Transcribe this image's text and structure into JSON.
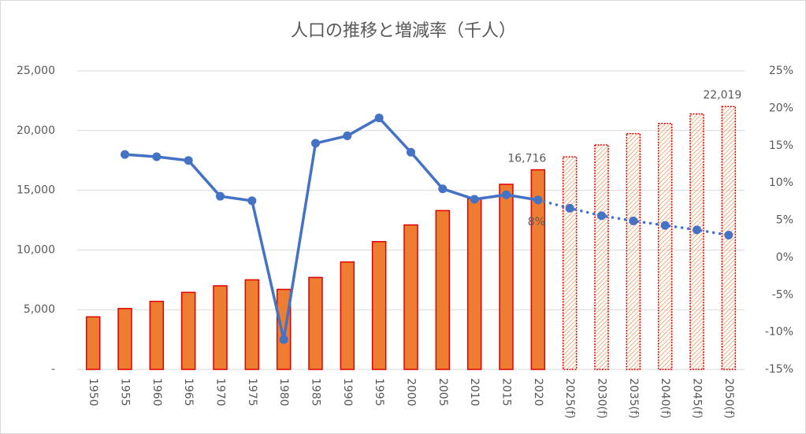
{
  "chart_data": {
    "type": "bar",
    "title": "人口の推移と増減率（千人）",
    "categories": [
      "1950",
      "1955",
      "1960",
      "1965",
      "1970",
      "1975",
      "1980",
      "1985",
      "1990",
      "1995",
      "2000",
      "2005",
      "2010",
      "2015",
      "2020",
      "2025(f)",
      "2030(f)",
      "2035(f)",
      "2040(f)",
      "2045(f)",
      "2050(f)"
    ],
    "series": [
      {
        "type": "bar",
        "color": "#ed7d31",
        "edge": "#e00000",
        "values": [
          4400,
          5100,
          5700,
          6450,
          7000,
          7500,
          6700,
          7700,
          9000,
          10700,
          12100,
          13300,
          14300,
          15500,
          16716,
          null,
          null,
          null,
          null,
          null,
          null
        ],
        "value_labels": [
          null,
          null,
          null,
          null,
          null,
          null,
          null,
          null,
          null,
          null,
          null,
          null,
          null,
          null,
          "16,716",
          null,
          null,
          null,
          null,
          null,
          null
        ]
      },
      {
        "type": "bar",
        "color": "#ed7d31",
        "edge": "#e00000",
        "hatched": true,
        "values": [
          null,
          null,
          null,
          null,
          null,
          null,
          null,
          null,
          null,
          null,
          null,
          null,
          null,
          null,
          null,
          17800,
          18800,
          19750,
          20600,
          21400,
          22019
        ],
        "value_labels": [
          null,
          null,
          null,
          null,
          null,
          null,
          null,
          null,
          null,
          null,
          null,
          null,
          null,
          null,
          null,
          null,
          null,
          null,
          null,
          null,
          "22,019"
        ]
      },
      {
        "type": "line",
        "axis": "y2",
        "color": "#4472c4",
        "values": [
          null,
          13.8,
          13.5,
          13.0,
          8.2,
          7.6,
          -11,
          15.3,
          16.3,
          18.7,
          14.1,
          9.2,
          7.8,
          8.4,
          7.7,
          null,
          null,
          null,
          null,
          null,
          null
        ],
        "value_labels": [
          null,
          null,
          null,
          null,
          null,
          null,
          null,
          null,
          null,
          null,
          null,
          null,
          null,
          null,
          "8%",
          null,
          null,
          null,
          null,
          null,
          null
        ]
      },
      {
        "type": "line",
        "axis": "y2",
        "color": "#4472c4",
        "dotted": true,
        "values": [
          null,
          null,
          null,
          null,
          null,
          null,
          null,
          null,
          null,
          null,
          null,
          null,
          null,
          null,
          7.7,
          6.6,
          5.6,
          4.9,
          4.3,
          3.7,
          3.0
        ]
      }
    ],
    "ylim": [
      0,
      25000
    ],
    "yticks": [
      {
        "value": 0,
        "label": "-"
      },
      {
        "value": 5000,
        "label": "5,000"
      },
      {
        "value": 10000,
        "label": "10,000"
      },
      {
        "value": 15000,
        "label": "15,000"
      },
      {
        "value": 20000,
        "label": "20,000"
      },
      {
        "value": 25000,
        "label": "25,000"
      }
    ],
    "y2lim": [
      -15,
      25
    ],
    "y2ticks": [
      {
        "value": -15,
        "label": "-15%"
      },
      {
        "value": -10,
        "label": "-10%"
      },
      {
        "value": -5,
        "label": "-5%"
      },
      {
        "value": 0,
        "label": "0%"
      },
      {
        "value": 5,
        "label": "5%"
      },
      {
        "value": 10,
        "label": "10%"
      },
      {
        "value": 15,
        "label": "15%"
      },
      {
        "value": 20,
        "label": "20%"
      },
      {
        "value": 25,
        "label": "25%"
      }
    ],
    "grid": true
  }
}
